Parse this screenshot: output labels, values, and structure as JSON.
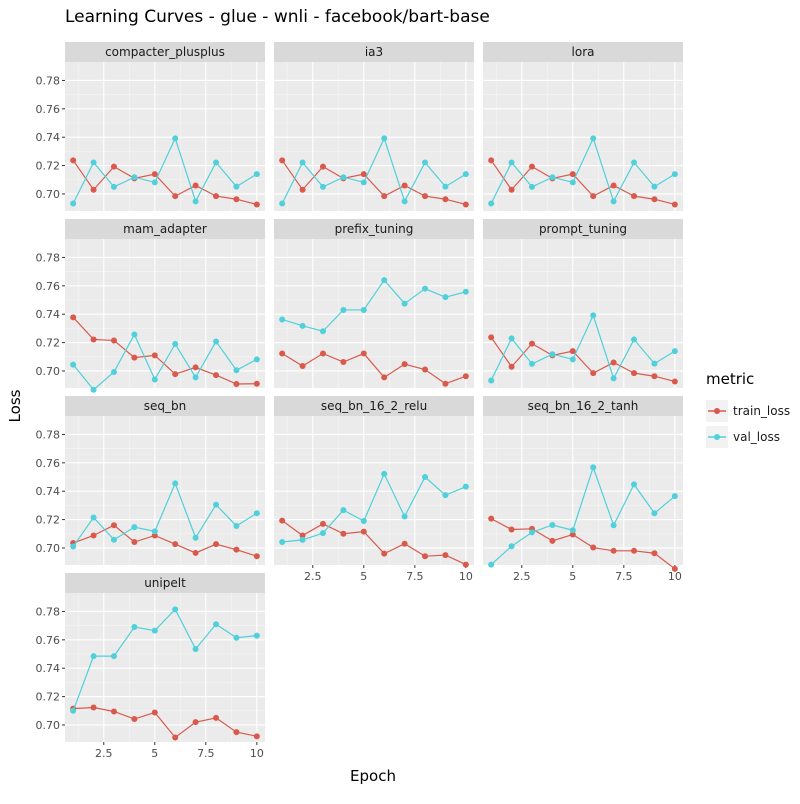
{
  "chart_data": {
    "type": "line",
    "title": "Learning Curves - glue - wnli - facebook/bart-base",
    "xlabel": "Epoch",
    "ylabel": "Loss",
    "xlim": [
      0.6,
      10.4
    ],
    "ylim": [
      0.688,
      0.793
    ],
    "x_ticks": [
      2.5,
      5,
      7.5,
      10
    ],
    "x_tick_labels": [
      "2.5",
      "5",
      "7.5",
      "10"
    ],
    "y_ticks": [
      0.7,
      0.72,
      0.74,
      0.76,
      0.78
    ],
    "y_tick_labels": [
      "0.70",
      "0.72",
      "0.74",
      "0.76",
      "0.78"
    ],
    "grid": true,
    "legend": {
      "title": "metric",
      "position": "right",
      "entries": [
        {
          "name": "train_loss",
          "color": "#D9594C"
        },
        {
          "name": "val_loss",
          "color": "#4FD0DA"
        }
      ]
    },
    "x": [
      1,
      2,
      3,
      4,
      5,
      6,
      7,
      8,
      9,
      10
    ],
    "panels": [
      {
        "name": "compacter_plusplus",
        "series": [
          {
            "name": "train_loss",
            "values": [
              0.7237,
              0.703,
              0.7193,
              0.711,
              0.714,
              0.6985,
              0.706,
              0.6985,
              0.6963,
              0.6926
            ]
          },
          {
            "name": "val_loss",
            "values": [
              0.6933,
              0.7222,
              0.705,
              0.7118,
              0.7082,
              0.7392,
              0.6948,
              0.7222,
              0.7052,
              0.714
            ]
          }
        ]
      },
      {
        "name": "ia3",
        "series": [
          {
            "name": "train_loss",
            "values": [
              0.7237,
              0.703,
              0.7193,
              0.711,
              0.714,
              0.6985,
              0.706,
              0.6985,
              0.6963,
              0.6926
            ]
          },
          {
            "name": "val_loss",
            "values": [
              0.6933,
              0.7222,
              0.705,
              0.7118,
              0.7082,
              0.7392,
              0.6948,
              0.7222,
              0.7052,
              0.714
            ]
          }
        ]
      },
      {
        "name": "lora",
        "series": [
          {
            "name": "train_loss",
            "values": [
              0.7237,
              0.703,
              0.7193,
              0.711,
              0.714,
              0.6985,
              0.706,
              0.6985,
              0.6963,
              0.6926
            ]
          },
          {
            "name": "val_loss",
            "values": [
              0.6933,
              0.7222,
              0.705,
              0.7118,
              0.7082,
              0.7392,
              0.6948,
              0.7222,
              0.7052,
              0.714
            ]
          }
        ]
      },
      {
        "name": "mam_adapter",
        "series": [
          {
            "name": "train_loss",
            "values": [
              0.7378,
              0.7222,
              0.7215,
              0.7094,
              0.711,
              0.6978,
              0.7025,
              0.6971,
              0.6908,
              0.691
            ]
          },
          {
            "name": "val_loss",
            "values": [
              0.7045,
              0.6868,
              0.6993,
              0.7257,
              0.694,
              0.719,
              0.6955,
              0.7208,
              0.7005,
              0.7082
            ]
          }
        ]
      },
      {
        "name": "prefix_tuning",
        "series": [
          {
            "name": "train_loss",
            "values": [
              0.7123,
              0.7035,
              0.7123,
              0.7063,
              0.7123,
              0.6955,
              0.7048,
              0.701,
              0.691,
              0.6963
            ]
          },
          {
            "name": "val_loss",
            "values": [
              0.7363,
              0.7318,
              0.728,
              0.743,
              0.743,
              0.764,
              0.7475,
              0.758,
              0.752,
              0.7558
            ]
          }
        ]
      },
      {
        "name": "prompt_tuning",
        "series": [
          {
            "name": "train_loss",
            "values": [
              0.7237,
              0.703,
              0.7193,
              0.711,
              0.714,
              0.6985,
              0.706,
              0.6985,
              0.6963,
              0.6926
            ]
          },
          {
            "name": "val_loss",
            "values": [
              0.6933,
              0.723,
              0.705,
              0.7118,
              0.7082,
              0.7392,
              0.6948,
              0.7222,
              0.7052,
              0.714
            ]
          }
        ]
      },
      {
        "name": "seq_bn",
        "series": [
          {
            "name": "train_loss",
            "values": [
              0.7035,
              0.7088,
              0.716,
              0.7042,
              0.7088,
              0.7027,
              0.6965,
              0.7027,
              0.6988,
              0.6942
            ]
          },
          {
            "name": "val_loss",
            "values": [
              0.701,
              0.7215,
              0.7058,
              0.7147,
              0.7117,
              0.7455,
              0.7072,
              0.7305,
              0.7155,
              0.7245
            ]
          }
        ]
      },
      {
        "name": "seq_bn_16_2_relu",
        "series": [
          {
            "name": "train_loss",
            "values": [
              0.7193,
              0.7088,
              0.717,
              0.71,
              0.7115,
              0.696,
              0.703,
              0.6942,
              0.695,
              0.6883
            ]
          },
          {
            "name": "val_loss",
            "values": [
              0.7042,
              0.7057,
              0.7105,
              0.7267,
              0.719,
              0.7522,
              0.7222,
              0.75,
              0.7372,
              0.7432
            ]
          }
        ]
      },
      {
        "name": "seq_bn_16_2_tanh",
        "series": [
          {
            "name": "train_loss",
            "values": [
              0.7207,
              0.713,
              0.7135,
              0.705,
              0.7095,
              0.7003,
              0.698,
              0.698,
              0.6963,
              0.6853
            ]
          },
          {
            "name": "val_loss",
            "values": [
              0.6883,
              0.7012,
              0.711,
              0.7162,
              0.7125,
              0.7568,
              0.716,
              0.7448,
              0.7245,
              0.7365
            ]
          }
        ]
      },
      {
        "name": "unipelt",
        "series": [
          {
            "name": "train_loss",
            "values": [
              0.7115,
              0.7123,
              0.7095,
              0.7042,
              0.7088,
              0.6912,
              0.702,
              0.705,
              0.695,
              0.692
            ]
          },
          {
            "name": "val_loss",
            "values": [
              0.71,
              0.7485,
              0.7485,
              0.769,
              0.7665,
              0.7815,
              0.7535,
              0.771,
              0.7615,
              0.763
            ]
          }
        ]
      }
    ]
  }
}
